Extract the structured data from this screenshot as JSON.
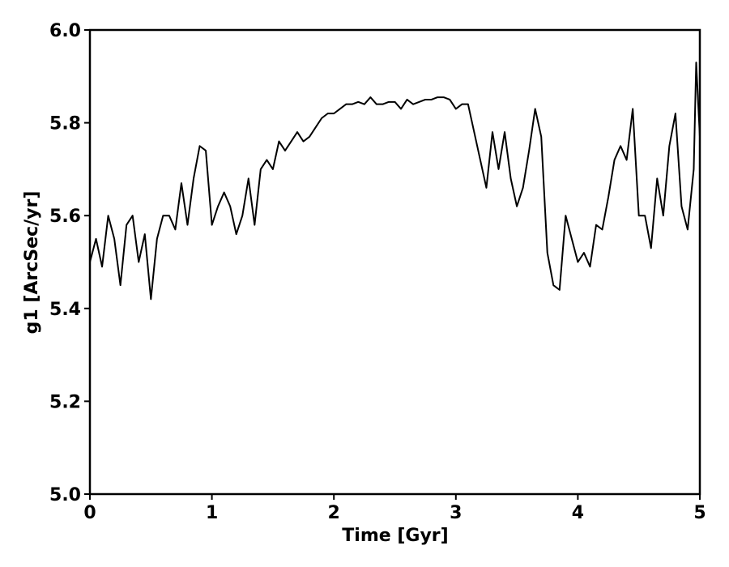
{
  "chart_data": {
    "type": "line",
    "xlabel": "Time [Gyr]",
    "ylabel": "g1 [ArcSec/yr]",
    "x": [
      0,
      0.05,
      0.1,
      0.15,
      0.2,
      0.25,
      0.3,
      0.35,
      0.4,
      0.45,
      0.5,
      0.55,
      0.6,
      0.65,
      0.7,
      0.75,
      0.8,
      0.85,
      0.9,
      0.95,
      1.0,
      1.05,
      1.1,
      1.15,
      1.2,
      1.25,
      1.3,
      1.35,
      1.4,
      1.45,
      1.5,
      1.55,
      1.6,
      1.65,
      1.7,
      1.75,
      1.8,
      1.85,
      1.9,
      1.95,
      2.0,
      2.05,
      2.1,
      2.15,
      2.2,
      2.25,
      2.3,
      2.35,
      2.4,
      2.45,
      2.5,
      2.55,
      2.6,
      2.65,
      2.7,
      2.75,
      2.8,
      2.85,
      2.9,
      2.95,
      3.0,
      3.05,
      3.1,
      3.15,
      3.2,
      3.25,
      3.3,
      3.35,
      3.4,
      3.45,
      3.5,
      3.55,
      3.6,
      3.65,
      3.7,
      3.75,
      3.8,
      3.85,
      3.9,
      3.95,
      4.0,
      4.05,
      4.1,
      4.15,
      4.2,
      4.25,
      4.3,
      4.35,
      4.4,
      4.45,
      4.5,
      4.55,
      4.6,
      4.65,
      4.7,
      4.75,
      4.8,
      4.85,
      4.9,
      4.95,
      4.97,
      5.0
    ],
    "series": [
      {
        "color": "#000000",
        "values": [
          5.5,
          5.55,
          5.49,
          5.6,
          5.55,
          5.45,
          5.58,
          5.6,
          5.5,
          5.56,
          5.42,
          5.55,
          5.6,
          5.6,
          5.57,
          5.67,
          5.58,
          5.68,
          5.75,
          5.74,
          5.58,
          5.62,
          5.65,
          5.62,
          5.56,
          5.6,
          5.68,
          5.58,
          5.7,
          5.72,
          5.7,
          5.76,
          5.74,
          5.76,
          5.78,
          5.76,
          5.77,
          5.79,
          5.81,
          5.82,
          5.82,
          5.83,
          5.84,
          5.84,
          5.845,
          5.84,
          5.855,
          5.84,
          5.84,
          5.845,
          5.845,
          5.83,
          5.85,
          5.84,
          5.845,
          5.85,
          5.85,
          5.855,
          5.855,
          5.85,
          5.83,
          5.84,
          5.84,
          5.78,
          5.72,
          5.66,
          5.78,
          5.7,
          5.78,
          5.68,
          5.62,
          5.66,
          5.74,
          5.83,
          5.77,
          5.52,
          5.45,
          5.44,
          5.6,
          5.55,
          5.5,
          5.52,
          5.49,
          5.58,
          5.57,
          5.64,
          5.72,
          5.75,
          5.72,
          5.83,
          5.6,
          5.6,
          5.53,
          5.68,
          5.6,
          5.75,
          5.82,
          5.62,
          5.57,
          5.7,
          5.93,
          5.77
        ]
      }
    ],
    "xlim": [
      0,
      5
    ],
    "xticks": [
      0,
      1,
      2,
      3,
      4,
      5
    ],
    "ylim": [
      5.0,
      6.0
    ],
    "yticks": [
      {
        "value": 5.0,
        "label": "5.0"
      },
      5.2,
      5.4,
      5.6,
      5.8,
      {
        "value": 6.0,
        "label": "6.0"
      }
    ]
  }
}
